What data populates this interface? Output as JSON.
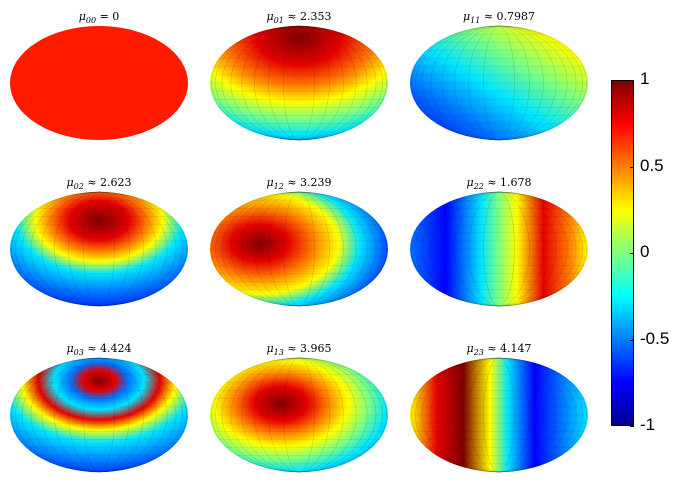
{
  "panels": [
    {
      "index": "00",
      "relation": "=",
      "value": "0",
      "pattern": "constant"
    },
    {
      "index": "01",
      "relation": "≈",
      "value": "2.353",
      "pattern": "top-cap"
    },
    {
      "index": "11",
      "relation": "≈",
      "value": "0.7987",
      "pattern": "diag-lr"
    },
    {
      "index": "02",
      "relation": "≈",
      "value": "2.623",
      "pattern": "ring-top"
    },
    {
      "index": "12",
      "relation": "≈",
      "value": "3.239",
      "pattern": "left-lobe"
    },
    {
      "index": "22",
      "relation": "≈",
      "value": "1.678",
      "pattern": "split-vertical"
    },
    {
      "index": "03",
      "relation": "≈",
      "value": "4.424",
      "pattern": "rings"
    },
    {
      "index": "13",
      "relation": "≈",
      "value": "3.965",
      "pattern": "two-lobe"
    },
    {
      "index": "23",
      "relation": "≈",
      "value": "4.147",
      "pattern": "four-lobe"
    }
  ],
  "colorbar": {
    "ticks": [
      "1",
      "0.5",
      "0",
      "-0.5",
      "-1"
    ],
    "colormap": "jet",
    "range": [
      -1,
      1
    ]
  }
}
